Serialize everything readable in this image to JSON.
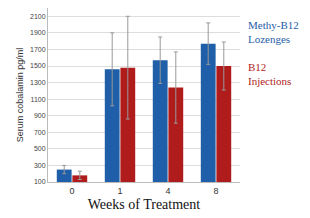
{
  "chart_data": {
    "type": "bar",
    "x_label": "Weeks of Treatment",
    "y_label": "Serum cobalamin pg/ml",
    "categories": [
      "0",
      "1",
      "4",
      "8"
    ],
    "series": [
      {
        "name": "Methy-B12 Lozenges",
        "color": "#1f5ea8",
        "values": [
          250,
          1460,
          1570,
          1770
        ],
        "errors": [
          50,
          440,
          280,
          250
        ]
      },
      {
        "name": "B12 Injections",
        "color": "#b01c1c",
        "values": [
          180,
          1480,
          1240,
          1500
        ],
        "errors": [
          50,
          620,
          430,
          290
        ]
      }
    ],
    "ylim": [
      100,
      2200
    ],
    "yticks": [
      100,
      300,
      500,
      700,
      900,
      1100,
      1300,
      1500,
      1700,
      1900,
      2100
    ],
    "grid": true,
    "legend": "right"
  }
}
